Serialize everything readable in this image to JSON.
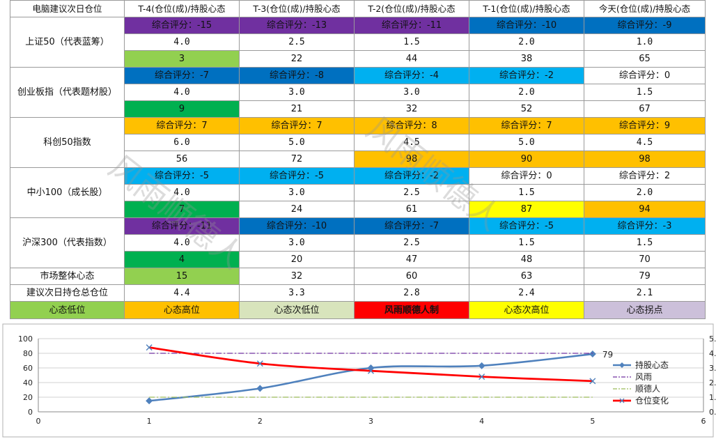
{
  "table": {
    "corner": "电脑建议次日仓位",
    "columns": [
      "T-4(仓位(成)/持股心态",
      "T-3(仓位(成)/持股心态",
      "T-2(仓位(成)/持股心态",
      "T-1(仓位(成)/持股心态",
      "今天(仓位(成)/持股心态"
    ],
    "groups": [
      {
        "name": "上证50（代表蓝筹）",
        "scores": [
          "综合评分：-15",
          "综合评分：-13",
          "综合评分：-11",
          "综合评分：-10",
          "综合评分：-9"
        ],
        "score_colors": [
          "#7030a0",
          "#7030a0",
          "#7030a0",
          "#0070c0",
          "#0070c0"
        ],
        "positions": [
          "4.0",
          "2.5",
          "1.5",
          "2.0",
          "1.0"
        ],
        "moods": [
          "3",
          "22",
          "44",
          "38",
          "65"
        ],
        "mood_colors": [
          "#92d050",
          "",
          "",
          "",
          ""
        ]
      },
      {
        "name": "创业板指（代表题材股）",
        "scores": [
          "综合评分：-7",
          "综合评分：-8",
          "综合评分：-4",
          "综合评分：-2",
          "综合评分：0"
        ],
        "score_colors": [
          "#0070c0",
          "#0070c0",
          "#00b0f0",
          "#00b0f0",
          ""
        ],
        "positions": [
          "4.0",
          "3.0",
          "3.0",
          "2.0",
          "1.5"
        ],
        "moods": [
          "9",
          "21",
          "32",
          "52",
          "67"
        ],
        "mood_colors": [
          "#00b050",
          "",
          "",
          "",
          ""
        ]
      },
      {
        "name": "科创50指数",
        "scores": [
          "综合评分：7",
          "综合评分：7",
          "综合评分：8",
          "综合评分：7",
          "综合评分：9"
        ],
        "score_colors": [
          "#ffc000",
          "#ffc000",
          "#ffc000",
          "#ffc000",
          "#ffc000"
        ],
        "positions": [
          "6.0",
          "5.0",
          "4.5",
          "5.0",
          "4.5"
        ],
        "moods": [
          "56",
          "72",
          "98",
          "90",
          "98"
        ],
        "mood_colors": [
          "",
          "",
          "#ffc000",
          "#ffc000",
          "#ffc000"
        ]
      },
      {
        "name": "中小100（成长股）",
        "scores": [
          "综合评分：-5",
          "综合评分：-5",
          "综合评分：-2",
          "综合评分：0",
          "综合评分：2"
        ],
        "score_colors": [
          "#00b0f0",
          "#00b0f0",
          "#00b0f0",
          "",
          ""
        ],
        "positions": [
          "4.0",
          "3.0",
          "2.5",
          "1.5",
          "2.0"
        ],
        "moods": [
          "7",
          "24",
          "61",
          "87",
          "94"
        ],
        "mood_colors": [
          "#00b050",
          "",
          "",
          "#ffff00",
          "#ffc000"
        ]
      },
      {
        "name": "沪深300（代表指数）",
        "scores": [
          "综合评分：-11",
          "综合评分：-10",
          "综合评分：-7",
          "综合评分：-5",
          "综合评分：-3"
        ],
        "score_colors": [
          "#7030a0",
          "#0070c0",
          "#0070c0",
          "#00b0f0",
          "#00b0f0"
        ],
        "positions": [
          "4.0",
          "3.0",
          "2.5",
          "1.5",
          "1.5"
        ],
        "moods": [
          "4",
          "20",
          "47",
          "48",
          "70"
        ],
        "mood_colors": [
          "#00b050",
          "",
          "",
          "",
          ""
        ]
      }
    ],
    "market_mood": {
      "label": "市场整体心态",
      "values": [
        "15",
        "32",
        "60",
        "63",
        "79"
      ],
      "colors": [
        "#92d050",
        "",
        "",
        "",
        ""
      ]
    },
    "total_position": {
      "label": "建议次日持仓总仓位",
      "values": [
        "4.4",
        "3.3",
        "2.8",
        "2.4",
        "2.1"
      ]
    },
    "legend": [
      {
        "label": "心态低位",
        "color": "#92d050"
      },
      {
        "label": "心态高位",
        "color": "#ffc000"
      },
      {
        "label": "心态次低位",
        "color": "#d8e4bc"
      },
      {
        "label": "风雨顺德人制",
        "color": "#ff0000"
      },
      {
        "label": "心态次高位",
        "color": "#ffff00"
      },
      {
        "label": "心态拐点",
        "color": "#ccc0da"
      }
    ]
  },
  "watermark": [
    "风雨顺德人",
    "风雨顺德人"
  ],
  "chart_data": {
    "type": "line",
    "x": [
      1,
      2,
      3,
      4,
      5
    ],
    "xlim": [
      0,
      6
    ],
    "xticks": [
      "0",
      "1",
      "2",
      "3",
      "4",
      "5",
      "6"
    ],
    "ylim": [
      0,
      100
    ],
    "yticks": [
      "0",
      "20",
      "40",
      "60",
      "80",
      "100"
    ],
    "y2lim": [
      0,
      5
    ],
    "y2ticks": [
      "0.",
      "1.",
      "2.",
      "3.",
      "4.",
      "5."
    ],
    "series": [
      {
        "name": "持股心态",
        "axis": "left",
        "values": [
          15,
          32,
          60,
          63,
          79
        ],
        "color": "#4f81bd",
        "style": "smooth-diamond"
      },
      {
        "name": "风雨",
        "axis": "left",
        "values": [
          80,
          80,
          80,
          80,
          80
        ],
        "color": "#7030a0",
        "style": "dashdot"
      },
      {
        "name": "顺德人",
        "axis": "left",
        "values": [
          20,
          20,
          20,
          20,
          20
        ],
        "color": "#9bbb59",
        "style": "dashdot"
      },
      {
        "name": "仓位变化",
        "axis": "right",
        "values": [
          4.4,
          3.3,
          2.8,
          2.4,
          2.1
        ],
        "color": "#ff0000",
        "style": "smooth-x"
      }
    ],
    "data_labels": [
      {
        "series": "持股心态",
        "index": 4,
        "text": "79"
      }
    ],
    "grid": true,
    "legend_position": "right"
  }
}
